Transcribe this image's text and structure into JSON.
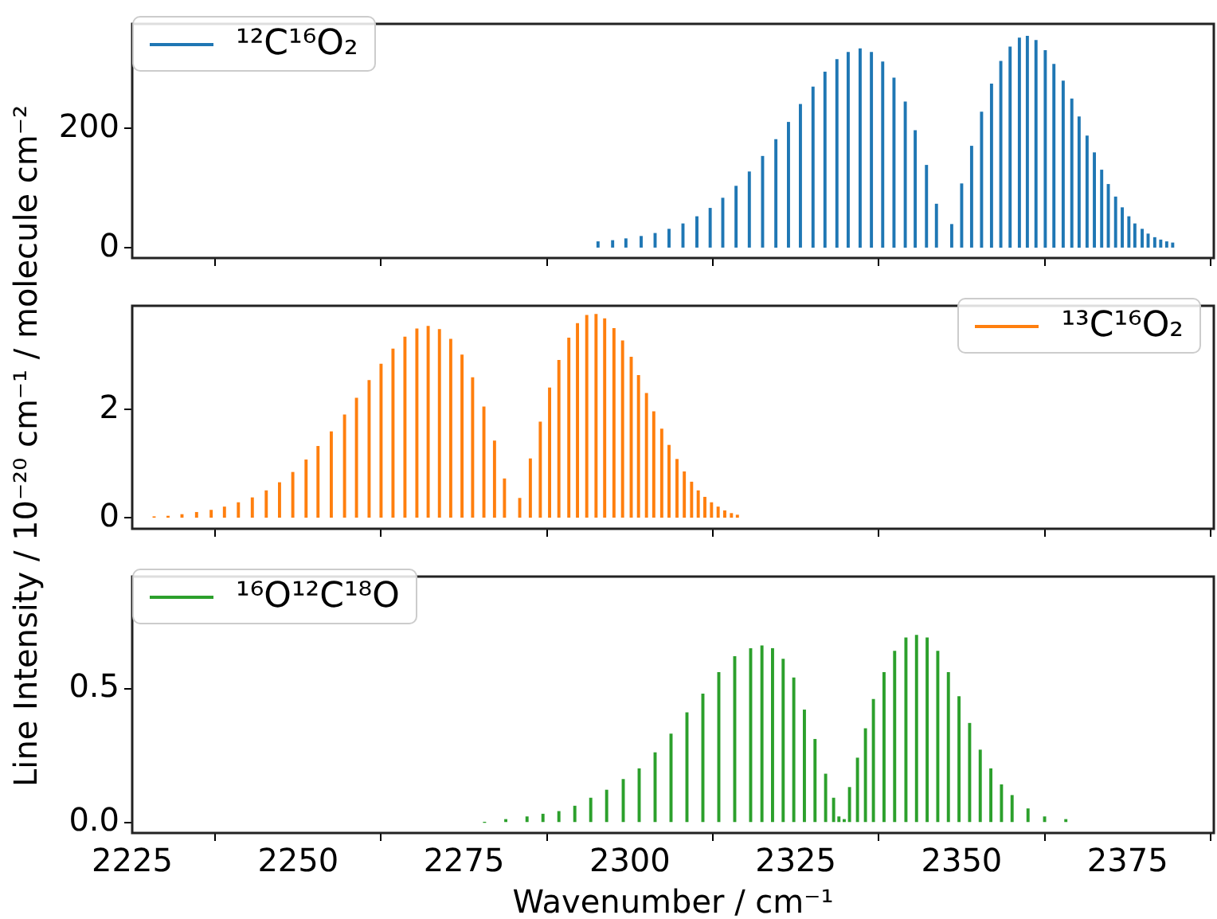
{
  "chart_data": [
    {
      "type": "bar",
      "x": [
        2295.2,
        2297.4,
        2299.4,
        2301.7,
        2303.8,
        2305.9,
        2308.0,
        2310.1,
        2312.1,
        2314.0,
        2316.0,
        2318.0,
        2320.0,
        2322.0,
        2323.9,
        2325.7,
        2327.6,
        2329.4,
        2331.2,
        2332.9,
        2334.7,
        2336.4,
        2338.1,
        2339.8,
        2341.5,
        2343.0,
        2344.7,
        2346.2,
        2348.5,
        2350.0,
        2351.5,
        2353.0,
        2354.5,
        2355.9,
        2357.3,
        2358.7,
        2359.9,
        2361.2,
        2362.6,
        2363.9,
        2365.3,
        2366.6,
        2367.7,
        2368.9,
        2370.0,
        2371.1,
        2372.1,
        2373.2,
        2374.2,
        2375.2,
        2376.1,
        2377.2,
        2378.1,
        2379.1,
        2380.0,
        2380.9,
        2381.8
      ],
      "series": [
        {
          "name": "¹²C¹⁶O₂",
          "color": "#1f77b4",
          "values": [
            10,
            12,
            15,
            19,
            24,
            31,
            40,
            52,
            66,
            83,
            103,
            127,
            153,
            181,
            210,
            240,
            269,
            294,
            315,
            327,
            333,
            327,
            311,
            284,
            244,
            196,
            138,
            73,
            39,
            107,
            170,
            227,
            274,
            312,
            336,
            351,
            354,
            347,
            330,
            307,
            279,
            249,
            219,
            187,
            159,
            130,
            106,
            85,
            67,
            52,
            40,
            31,
            23,
            17,
            13,
            10,
            8
          ]
        }
      ],
      "xlim": [
        2225,
        2388
      ],
      "xticks": [
        2225,
        2250,
        2275,
        2300,
        2325,
        2350,
        2375
      ],
      "ylim": [
        -17,
        375
      ],
      "yticks": [
        0,
        200
      ],
      "legend": "top left",
      "tick_labels": "y"
    },
    {
      "type": "bar",
      "x": [
        2228.3,
        2230.4,
        2232.5,
        2234.7,
        2236.9,
        2238.9,
        2241.0,
        2243.1,
        2245.2,
        2247.2,
        2249.2,
        2251.2,
        2253.0,
        2255.0,
        2257.0,
        2258.8,
        2260.7,
        2262.5,
        2264.3,
        2266.1,
        2267.9,
        2269.6,
        2271.3,
        2273.0,
        2274.7,
        2276.3,
        2278.0,
        2279.6,
        2281.1,
        2283.4,
        2285.0,
        2286.5,
        2287.9,
        2289.3,
        2290.8,
        2292.1,
        2293.5,
        2294.9,
        2296.2,
        2297.6,
        2298.9,
        2300.2,
        2301.3,
        2302.5,
        2303.6,
        2304.8,
        2305.9,
        2307.1,
        2308.2,
        2309.3,
        2310.3,
        2311.3,
        2312.3,
        2313.3,
        2314.3,
        2315.3,
        2316.2
      ],
      "series": [
        {
          "name": "¹³C¹⁶O₂",
          "color": "#ff7f0e",
          "values": [
            0.02,
            0.03,
            0.06,
            0.1,
            0.14,
            0.2,
            0.28,
            0.37,
            0.5,
            0.65,
            0.84,
            1.07,
            1.32,
            1.59,
            1.9,
            2.21,
            2.54,
            2.84,
            3.12,
            3.34,
            3.49,
            3.54,
            3.48,
            3.3,
            3.01,
            2.59,
            2.05,
            1.42,
            0.72,
            0.36,
            1.09,
            1.77,
            2.4,
            2.91,
            3.32,
            3.59,
            3.74,
            3.76,
            3.68,
            3.5,
            3.27,
            2.97,
            2.63,
            2.3,
            1.96,
            1.64,
            1.34,
            1.08,
            0.85,
            0.66,
            0.5,
            0.38,
            0.28,
            0.2,
            0.13,
            0.08,
            0.05
          ]
        }
      ],
      "ylabel": "Line Intensity / 10⁻²⁰ cm⁻¹ / molecule cm⁻²",
      "xlim": [
        2225,
        2388
      ],
      "xticks": [
        2225,
        2250,
        2275,
        2300,
        2325,
        2350,
        2375
      ],
      "ylim": [
        -0.2,
        3.92
      ],
      "yticks": [
        0,
        2
      ],
      "legend": "top right",
      "tick_labels": "y"
    },
    {
      "type": "bar",
      "x": [
        2278.1,
        2281.3,
        2284.5,
        2286.9,
        2289.3,
        2291.7,
        2294.1,
        2296.5,
        2299.0,
        2301.4,
        2303.8,
        2306.2,
        2308.6,
        2311.0,
        2313.4,
        2315.8,
        2318.2,
        2319.9,
        2321.5,
        2323.1,
        2324.7,
        2326.3,
        2327.9,
        2329.5,
        2330.7,
        2331.5,
        2332.3,
        2333.1,
        2334.3,
        2335.5,
        2336.7,
        2338.3,
        2339.9,
        2341.6,
        2343.2,
        2344.8,
        2346.4,
        2348.0,
        2349.6,
        2351.2,
        2352.8,
        2354.4,
        2356.0,
        2357.6,
        2360.0,
        2362.5,
        2365.7
      ],
      "series": [
        {
          "name": "¹⁶O¹²C¹⁸O",
          "color": "#2ca02c",
          "values": [
            0.0,
            0.01,
            0.02,
            0.03,
            0.04,
            0.06,
            0.09,
            0.12,
            0.16,
            0.2,
            0.26,
            0.33,
            0.41,
            0.48,
            0.56,
            0.62,
            0.65,
            0.66,
            0.65,
            0.61,
            0.54,
            0.42,
            0.31,
            0.18,
            0.09,
            0.02,
            0.01,
            0.13,
            0.24,
            0.35,
            0.46,
            0.56,
            0.64,
            0.69,
            0.7,
            0.69,
            0.64,
            0.56,
            0.47,
            0.37,
            0.27,
            0.2,
            0.14,
            0.1,
            0.05,
            0.02,
            0.01
          ]
        }
      ],
      "xlabel": "Wavenumber / cm⁻¹",
      "xlim": [
        2225,
        2388
      ],
      "xticks": [
        2225,
        2250,
        2275,
        2300,
        2325,
        2350,
        2375
      ],
      "ylim": [
        -0.04,
        0.92
      ],
      "yticks": [
        {
          "value": 0,
          "label": "0.0"
        },
        0.5
      ],
      "legend": "top left"
    }
  ]
}
